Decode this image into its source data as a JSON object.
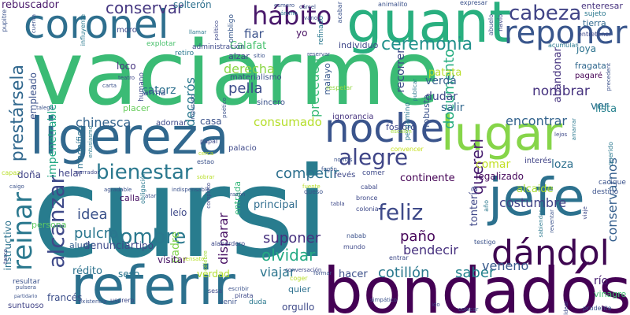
{
  "cloud": {
    "words": [
      {
        "text": "cursi",
        "color": "#287c8e"
      },
      {
        "text": "vaciarme",
        "color": "#3bbb75"
      },
      {
        "text": "bondadós",
        "color": "#440154"
      },
      {
        "text": "referir",
        "color": "#2c718e"
      },
      {
        "text": "ligereza",
        "color": "#31688e"
      },
      {
        "text": "guant",
        "color": "#29af7f"
      },
      {
        "text": "coronel",
        "color": "#2e6f8e"
      },
      {
        "text": "lugar",
        "color": "#86d549"
      },
      {
        "text": "noche",
        "color": "#3a548c"
      },
      {
        "text": "jefe",
        "color": "#2c718e"
      },
      {
        "text": "dándol",
        "color": "#3e0751"
      },
      {
        "text": "reinar",
        "color": "#2a788e"
      },
      {
        "text": "reponer",
        "color": "#39568c"
      },
      {
        "text": "hábito",
        "color": "#48186a"
      },
      {
        "text": "cabeza",
        "color": "#414487"
      },
      {
        "text": "bienestar",
        "color": "#2a788e"
      },
      {
        "text": "alegre",
        "color": "#404688"
      },
      {
        "text": "alcanzar",
        "color": "#3e4989"
      },
      {
        "text": "hombre",
        "color": "#2a788e"
      },
      {
        "text": "ceremonia",
        "color": "#21918c"
      },
      {
        "text": "conservar",
        "color": "#453781"
      },
      {
        "text": "feliz",
        "color": "#3e4a89"
      },
      {
        "text": "prestársela",
        "color": "#31688e"
      },
      {
        "text": "documento",
        "color": "#27ad81"
      },
      {
        "text": "quererl",
        "color": "#481f70"
      },
      {
        "text": "costumbre",
        "color": "#414487"
      },
      {
        "text": "olvidar",
        "color": "#23a983"
      },
      {
        "text": "bendecir",
        "color": "#46307e"
      },
      {
        "text": "cotillón",
        "color": "#2a788e"
      },
      {
        "text": "saber",
        "color": "#25838e"
      },
      {
        "text": "suponer",
        "color": "#46307e"
      },
      {
        "text": "paño",
        "color": "#450559"
      },
      {
        "text": "idea",
        "color": "#3b528b"
      },
      {
        "text": "pulcro",
        "color": "#2a768e"
      },
      {
        "text": "viajar",
        "color": "#2b758e"
      },
      {
        "text": "competir",
        "color": "#2d708e"
      },
      {
        "text": "consumado",
        "color": "#b5de2b"
      },
      {
        "text": "encontrar",
        "color": "#33638d"
      },
      {
        "text": "nombrar",
        "color": "#46337f"
      },
      {
        "text": "pella",
        "color": "#3d4d8a"
      },
      {
        "text": "derecha",
        "color": "#8bd646"
      },
      {
        "text": "chinesca",
        "color": "#33638d"
      },
      {
        "text": "fiar",
        "color": "#3b528b"
      },
      {
        "text": "catorz",
        "color": "#2d708e"
      },
      {
        "text": "decorós",
        "color": "#2a788e"
      },
      {
        "text": "preceden",
        "color": "#3aba76"
      },
      {
        "text": "recorrer",
        "color": "#3e4a89"
      },
      {
        "text": "impenetrable",
        "color": "#22a884"
      },
      {
        "text": "Calafat",
        "color": "#48c16e"
      },
      {
        "text": "veneno",
        "color": "#38598c"
      },
      {
        "text": "conservarnos",
        "color": "#355f8d"
      },
      {
        "text": "río",
        "color": "#481f70"
      },
      {
        "text": "tontería",
        "color": "#3f4788"
      },
      {
        "text": "hacer",
        "color": "#3c508b"
      },
      {
        "text": "disparar",
        "color": "#471063"
      },
      {
        "text": "principal",
        "color": "#2f6c8e"
      },
      {
        "text": "verdá",
        "color": "#35608d"
      },
      {
        "text": "dudar",
        "color": "#3e4989"
      },
      {
        "text": "salir",
        "color": "#31688e"
      },
      {
        "text": "ver",
        "color": "#2c718e"
      },
      {
        "text": "joya",
        "color": "#2c728e"
      },
      {
        "text": "lista",
        "color": "#26818e"
      },
      {
        "text": "patata",
        "color": "#b8de29"
      },
      {
        "text": "comar",
        "color": "#c2df23"
      },
      {
        "text": "loza",
        "color": "#2d708e"
      },
      {
        "text": "continente",
        "color": "#440154"
      },
      {
        "text": "legalizado",
        "color": "#46085c"
      },
      {
        "text": "alcaide",
        "color": "#aadc32"
      },
      {
        "text": "rédito",
        "color": "#2c728e"
      },
      {
        "text": "seso",
        "color": "#2a768e"
      },
      {
        "text": "denunciar",
        "color": "#3e4989"
      },
      {
        "text": "francés",
        "color": "#3c4f8a"
      },
      {
        "text": "doña",
        "color": "#414487"
      },
      {
        "text": "helar",
        "color": "#414487"
      },
      {
        "text": "tipo",
        "color": "#3f4788"
      },
      {
        "text": "padre",
        "color": "#81d34d"
      },
      {
        "text": "visitar",
        "color": "#471365"
      },
      {
        "text": "verdad",
        "color": "#b2dd2d"
      },
      {
        "text": "orgullo",
        "color": "#3e4a89"
      },
      {
        "text": "quier",
        "color": "#2d708e"
      },
      {
        "text": "vinagre",
        "color": "#44bf70"
      },
      {
        "text": "casa",
        "color": "#3b528b"
      },
      {
        "text": "alzar",
        "color": "#3e4989"
      },
      {
        "text": "empleado",
        "color": "#3b528b"
      },
      {
        "text": "leío",
        "color": "#3e4989"
      },
      {
        "text": "entrada",
        "color": "#35b779"
      },
      {
        "text": "instructivo",
        "color": "#2c738e"
      },
      {
        "text": "rebuscador",
        "color": "#48186a"
      },
      {
        "text": "solterón",
        "color": "#2d708e"
      },
      {
        "text": "abandonar",
        "color": "#46337f"
      },
      {
        "text": "calla",
        "color": "#471063"
      },
      {
        "text": "aludir",
        "color": "#34618d"
      },
      {
        "text": "persona",
        "color": "#5ec962"
      },
      {
        "text": "enteresar",
        "color": "#46327e"
      },
      {
        "text": "magnífico",
        "color": "#2c718e"
      },
      {
        "text": "arma",
        "color": "#3b528b"
      },
      {
        "text": "placer",
        "color": "#67cc5c"
      },
      {
        "text": "malayo",
        "color": "#38588c"
      },
      {
        "text": "individuo",
        "color": "#3f4788"
      },
      {
        "text": "loco",
        "color": "#46337f"
      },
      {
        "text": "moro",
        "color": "#3e4989"
      },
      {
        "text": "yo",
        "color": "#471063"
      },
      {
        "text": "fósforo",
        "color": "#3e4989"
      },
      {
        "text": "robusta",
        "color": "#3b528b"
      },
      {
        "text": "pergamino",
        "color": "#2a788e"
      },
      {
        "text": "ignorancia",
        "color": "#46337f"
      },
      {
        "text": "adornar",
        "color": "#3e4a89"
      },
      {
        "text": "sincero",
        "color": "#3b528b"
      },
      {
        "text": "materialismo",
        "color": "#3b528b"
      },
      {
        "text": "explotar",
        "color": "#4ac16d"
      },
      {
        "text": "retiro",
        "color": "#2a788e"
      },
      {
        "text": "humano",
        "color": "#3e4989"
      },
      {
        "text": "administración",
        "color": "#3e4989"
      },
      {
        "text": "ombligo",
        "color": "#38588c"
      },
      {
        "text": "refinado",
        "color": "#2a788e"
      },
      {
        "text": "acabar",
        "color": "#3b528b"
      },
      {
        "text": "animalito",
        "color": "#3b528b"
      },
      {
        "text": "expresar",
        "color": "#3b528b"
      },
      {
        "text": "sujeto",
        "color": "#2a788e"
      },
      {
        "text": "tierra",
        "color": "#31688e"
      },
      {
        "text": "entretener",
        "color": "#3e4989"
      },
      {
        "text": "navío",
        "color": "#3e4989"
      },
      {
        "text": "abuelo",
        "color": "#3b528b"
      },
      {
        "text": "acumular",
        "color": "#2a788e"
      },
      {
        "text": "fragata",
        "color": "#31688e"
      },
      {
        "text": "pagaré",
        "color": "#440154"
      },
      {
        "text": "precedent",
        "color": "#3b528b"
      },
      {
        "text": "respetar",
        "color": "#93d741"
      },
      {
        "text": "convencer",
        "color": "#c5e021"
      },
      {
        "text": "escalón",
        "color": "#a0da39"
      },
      {
        "text": "revés",
        "color": "#3e4989"
      },
      {
        "text": "comer",
        "color": "#3e4989"
      },
      {
        "text": "interés",
        "color": "#414487"
      },
      {
        "text": "querido",
        "color": "#2a788e"
      },
      {
        "text": "cacique",
        "color": "#3b528b"
      },
      {
        "text": "destino",
        "color": "#3b528b"
      },
      {
        "text": "año",
        "color": "#2a788e"
      },
      {
        "text": "palacio",
        "color": "#3e4989"
      },
      {
        "text": "papal",
        "color": "#3e4989"
      },
      {
        "text": "cerca",
        "color": "#b8de29"
      },
      {
        "text": "estao",
        "color": "#3b528b"
      },
      {
        "text": "entusiasmo",
        "color": "#2a788e"
      },
      {
        "text": "obligación",
        "color": "#2a788e"
      },
      {
        "text": "alabardero",
        "color": "#3e4989"
      },
      {
        "text": "queso",
        "color": "#3b528b"
      },
      {
        "text": "tabla",
        "color": "#3e4989"
      },
      {
        "text": "cabal",
        "color": "#3e4989"
      },
      {
        "text": "bronce",
        "color": "#3e4989"
      },
      {
        "text": "colonia",
        "color": "#3e4989"
      },
      {
        "text": "nabab",
        "color": "#3b528b"
      },
      {
        "text": "mundo",
        "color": "#3e4989"
      },
      {
        "text": "entrar",
        "color": "#3e4989"
      },
      {
        "text": "testigo",
        "color": "#3b528b"
      },
      {
        "text": "sabiendas",
        "color": "#2a788e"
      },
      {
        "text": "viaje",
        "color": "#3e4989"
      },
      {
        "text": "reventar",
        "color": "#3b528b"
      },
      {
        "text": "coger",
        "color": "#b8de29"
      },
      {
        "text": "resultar",
        "color": "#3b528b"
      },
      {
        "text": "sesa",
        "color": "#3e4989"
      },
      {
        "text": "venir",
        "color": "#3b528b"
      },
      {
        "text": "duda",
        "color": "#2a788e"
      },
      {
        "text": "escribir",
        "color": "#3b528b"
      },
      {
        "text": "pirata",
        "color": "#3e4989"
      },
      {
        "text": "suntuoso",
        "color": "#414487"
      },
      {
        "text": "usurero",
        "color": "#3e4989"
      },
      {
        "text": "prudente",
        "color": "#3b528b"
      },
      {
        "text": "completo",
        "color": "#3e4989"
      },
      {
        "text": "esmero",
        "color": "#3b528b"
      },
      {
        "text": "ánimo",
        "color": "#2a788e"
      },
      {
        "text": "cárcel",
        "color": "#3b528b"
      },
      {
        "text": "pupitre",
        "color": "#3b528b"
      },
      {
        "text": "influyente",
        "color": "#2a788e"
      },
      {
        "text": "capaz",
        "color": "#b8de29"
      },
      {
        "text": "caigo",
        "color": "#3b528b"
      },
      {
        "text": "carta",
        "color": "#3b528b"
      },
      {
        "text": "teatro",
        "color": "#3e4989"
      },
      {
        "text": "poético",
        "color": "#3b528b"
      },
      {
        "text": "imputado",
        "color": "#3b528b"
      },
      {
        "text": "político",
        "color": "#3e4989"
      },
      {
        "text": "publicar",
        "color": "#2a788e"
      },
      {
        "text": "llamar",
        "color": "#2a788e"
      },
      {
        "text": "sitio",
        "color": "#3b528b"
      },
      {
        "text": "vano",
        "color": "#3b528b"
      },
      {
        "text": "reservar",
        "color": "#3b528b"
      },
      {
        "text": "fogón",
        "color": "#3b528b"
      },
      {
        "text": "amarrar",
        "color": "#2a788e"
      },
      {
        "text": "cuenta",
        "color": "#3b528b"
      },
      {
        "text": "talega",
        "color": "#3b528b"
      },
      {
        "text": "tasco",
        "color": "#3e4989"
      },
      {
        "text": "pulsera",
        "color": "#3b528b"
      },
      {
        "text": "partidario",
        "color": "#3b528b"
      },
      {
        "text": "existencia",
        "color": "#3b528b"
      },
      {
        "text": "conversación",
        "color": "#3e4989"
      },
      {
        "text": "formar",
        "color": "#3b528b"
      },
      {
        "text": "célebre",
        "color": "#a0da39"
      },
      {
        "text": "narrador",
        "color": "#3e4989"
      },
      {
        "text": "agradable",
        "color": "#3b528b"
      },
      {
        "text": "indispensable",
        "color": "#3b528b"
      },
      {
        "text": "razón",
        "color": "#3b528b"
      },
      {
        "text": "sensato",
        "color": "#b8de29"
      },
      {
        "text": "cabildear",
        "color": "#3e4989"
      },
      {
        "text": "simpático",
        "color": "#3b528b"
      },
      {
        "text": "ido",
        "color": "#3e4989"
      },
      {
        "text": "colocar",
        "color": "#3b528b"
      },
      {
        "text": "fuente",
        "color": "#b8de29"
      },
      {
        "text": "atar",
        "color": "#3b528b"
      },
      {
        "text": "sobrar",
        "color": "#b8de29"
      },
      {
        "text": "nomás",
        "color": "#3b528b"
      },
      {
        "text": "lejos",
        "color": "#3e4989"
      },
      {
        "text": "oveja",
        "color": "#3e4989"
      },
      {
        "text": "gana",
        "color": "#3b528b"
      },
      {
        "text": "virtud",
        "color": "#3b528b"
      },
      {
        "text": "ello",
        "color": "#3e4989"
      },
      {
        "text": "novio",
        "color": "#3b528b"
      },
      {
        "text": "mozo",
        "color": "#3b528b"
      },
      {
        "text": "rezar",
        "color": "#3b528b"
      },
      {
        "text": "bailar",
        "color": "#3b528b"
      },
      {
        "text": "abertura",
        "color": "#3b528b"
      }
    ]
  }
}
